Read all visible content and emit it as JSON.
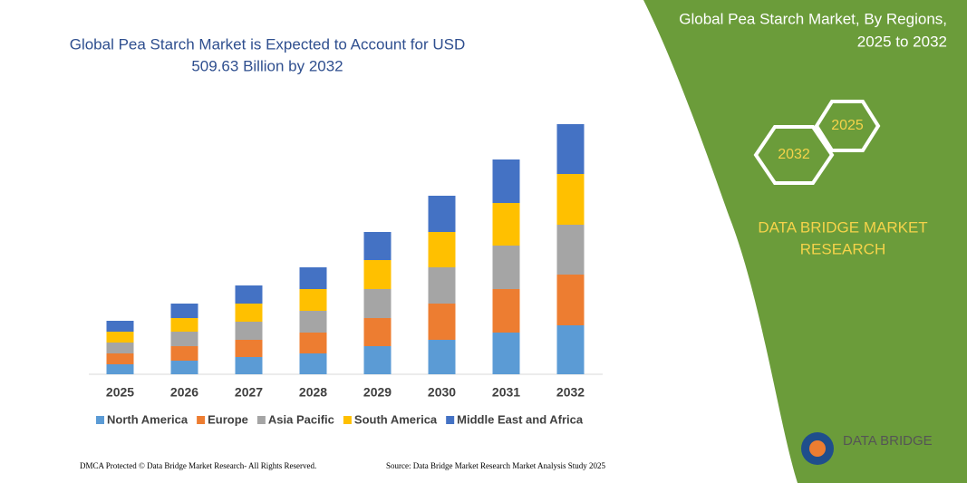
{
  "chart_data": {
    "type": "stacked-bar",
    "title": [
      "Global Pea Starch Market is Expected to Account for USD",
      "509.63 Billion by 2032"
    ],
    "categories": [
      "2025",
      "2026",
      "2027",
      "2028",
      "2029",
      "2030",
      "2031",
      "2032"
    ],
    "series": [
      {
        "name": "North America",
        "color": "#5b9bd5",
        "values": [
          11,
          15,
          19,
          23,
          31,
          38,
          46,
          54
        ]
      },
      {
        "name": "Europe",
        "color": "#ed7d31",
        "values": [
          12,
          16,
          19,
          23,
          31,
          40,
          48,
          56
        ]
      },
      {
        "name": "Asia Pacific",
        "color": "#a5a5a5",
        "values": [
          12,
          16,
          20,
          24,
          32,
          40,
          48,
          55
        ]
      },
      {
        "name": "South America",
        "color": "#ffc000",
        "values": [
          12,
          15,
          20,
          24,
          32,
          39,
          47,
          56
        ]
      },
      {
        "name": "Middle East and Africa",
        "color": "#4472c4",
        "values": [
          12,
          16,
          20,
          24,
          31,
          40,
          48,
          55
        ]
      }
    ],
    "ylim": [
      0,
      300
    ]
  },
  "panel": {
    "title": [
      "Global Pea Starch Market, By Regions,",
      "2025 to 2032"
    ],
    "hexagons": [
      "2025",
      "2032"
    ],
    "brand": [
      "DATA BRIDGE MARKET",
      "RESEARCH"
    ]
  },
  "logo": "DATA BRIDGE",
  "footer": {
    "left": "DMCA Protected © Data Bridge Market Research- All Rights Reserved.",
    "right": "Source: Data Bridge Market Research Market Analysis Study 2025"
  }
}
